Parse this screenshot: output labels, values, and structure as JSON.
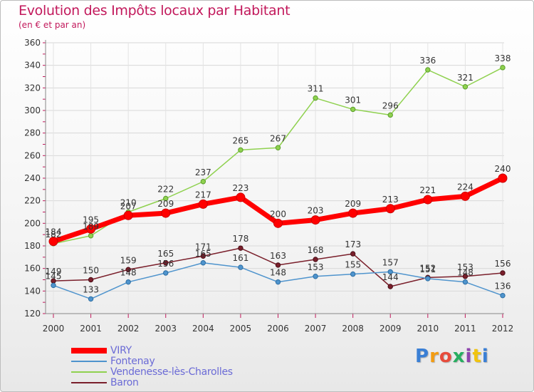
{
  "title": "Evolution des Impôts locaux par Habitant",
  "subtitle": "(en € et par an)",
  "logo_text": "Proxiti",
  "chart_data": {
    "type": "line",
    "title": "Evolution des Impôts locaux par Habitant",
    "subtitle": "(en € et par an)",
    "xlabel": "",
    "ylabel": "",
    "x": [
      "2000",
      "2001",
      "2002",
      "2003",
      "2004",
      "2005",
      "2006",
      "2007",
      "2008",
      "2009",
      "2010",
      "2011",
      "2012"
    ],
    "ylim": [
      120,
      360
    ],
    "yticks": [
      "120",
      "140",
      "160",
      "180",
      "200",
      "220",
      "240",
      "260",
      "280",
      "300",
      "320",
      "340",
      "360"
    ],
    "grid": true,
    "legend_position": "bottom-left",
    "series": [
      {
        "name": "VIRY",
        "color": "#ff0000",
        "values": [
          184,
          195,
          207,
          209,
          217,
          223,
          200,
          203,
          209,
          213,
          221,
          224,
          240
        ]
      },
      {
        "name": "Fontenay",
        "color": "#4f94cd",
        "values": [
          145,
          133,
          148,
          156,
          165,
          161,
          148,
          153,
          155,
          157,
          151,
          148,
          136
        ]
      },
      {
        "name": "Vendenesse-lès-Charolles",
        "color": "#8fd14f",
        "values": [
          182,
          189,
          210,
          222,
          237,
          265,
          267,
          311,
          301,
          296,
          336,
          321,
          338
        ]
      },
      {
        "name": "Baron",
        "color": "#7a1f2b",
        "values": [
          149,
          150,
          159,
          165,
          171,
          178,
          163,
          168,
          173,
          144,
          152,
          153,
          156
        ]
      }
    ]
  }
}
